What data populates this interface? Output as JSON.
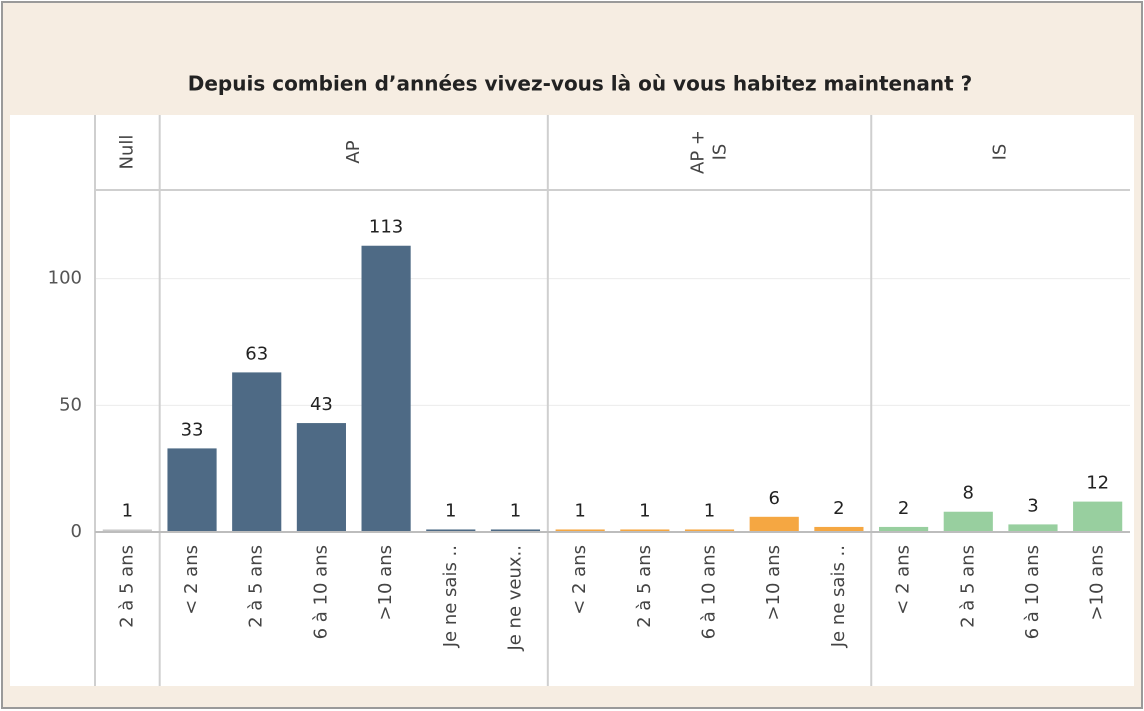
{
  "chart_data": {
    "type": "bar",
    "title": "Depuis combien d’années vivez-vous là où vous habitez maintenant ?",
    "ylim": [
      0,
      135
    ],
    "yticks": [
      0,
      50,
      100
    ],
    "grid": true,
    "panels": [
      {
        "header": [
          "Null"
        ],
        "color": "#c9c9c9",
        "categories": [
          "2 à 5 ans"
        ],
        "values": [
          1
        ]
      },
      {
        "header": [
          "AP"
        ],
        "color": "#4e6a85",
        "categories": [
          "< 2 ans",
          "2 à 5 ans",
          "6 à 10 ans",
          ">10 ans",
          "Je ne sais ..",
          "Je ne veux.."
        ],
        "values": [
          33,
          63,
          43,
          113,
          1,
          1
        ]
      },
      {
        "header": [
          "AP +",
          "IS"
        ],
        "color": "#f5a742",
        "categories": [
          "< 2 ans",
          "2 à 5 ans",
          "6 à 10 ans",
          ">10 ans",
          "Je ne sais .."
        ],
        "values": [
          1,
          1,
          1,
          6,
          2
        ]
      },
      {
        "header": [
          "IS"
        ],
        "color": "#98cf9f",
        "categories": [
          "< 2 ans",
          "2 à 5 ans",
          "6 à 10 ans",
          ">10 ans"
        ],
        "values": [
          2,
          8,
          3,
          12
        ]
      }
    ]
  }
}
